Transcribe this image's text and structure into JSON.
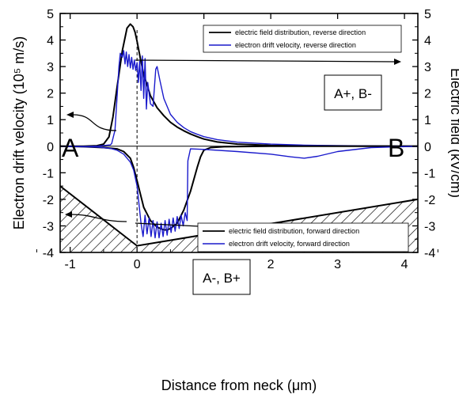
{
  "chart_data": {
    "type": "line",
    "xlabel": "Distance from neck (μm)",
    "ylabel_left": "Electron drift velocity (10⁵ m/s)",
    "ylabel_right": "Electric field  (kV/cm)",
    "xlim": [
      -1.15,
      4.2
    ],
    "ylim_left": [
      -4,
      5
    ],
    "ylim_right": [
      -4,
      5
    ],
    "x_ticks": [
      -1,
      0,
      1,
      2,
      3,
      4
    ],
    "y_ticks": [
      -4,
      -3,
      -2,
      -1,
      0,
      1,
      2,
      3,
      4,
      5
    ],
    "grid": false,
    "legends": [
      {
        "placement": "top-right",
        "entries": [
          {
            "label": "electric field distribution, reverse direction",
            "color": "#000000"
          },
          {
            "label": "electron drift velocity, reverse direction",
            "color": "#1a1acc"
          }
        ]
      },
      {
        "placement": "center-right",
        "entries": [
          {
            "label": "electric field distribution, forward direction",
            "color": "#000000"
          },
          {
            "label": "electron drift velocity, forward direction",
            "color": "#1a1acc"
          }
        ]
      }
    ],
    "annotations": {
      "terminal_left": "A",
      "terminal_right": "B",
      "box_reverse": "A+, B-",
      "box_forward": "A-, B+"
    },
    "series": [
      {
        "name": "electric field distribution, reverse direction",
        "color": "#000000",
        "x": [
          -1.15,
          -0.8,
          -0.6,
          -0.5,
          -0.42,
          -0.36,
          -0.3,
          -0.22,
          -0.15,
          -0.1,
          -0.06,
          -0.03,
          0.0,
          0.05,
          0.1,
          0.2,
          0.3,
          0.4,
          0.5,
          0.6,
          0.7,
          0.8,
          0.9,
          1.0,
          1.2,
          1.5,
          2.0,
          3.0,
          4.2
        ],
        "y": [
          0,
          0,
          0.02,
          0.08,
          0.35,
          1.1,
          2.2,
          3.6,
          4.45,
          4.6,
          4.5,
          4.3,
          3.95,
          3.3,
          2.7,
          1.9,
          1.45,
          1.15,
          0.9,
          0.72,
          0.58,
          0.46,
          0.36,
          0.27,
          0.16,
          0.08,
          0.03,
          0.01,
          0
        ]
      },
      {
        "name": "electron drift velocity, reverse direction",
        "color": "#1a1acc",
        "x": [
          -1.15,
          -0.6,
          -0.4,
          -0.38,
          -0.33,
          -0.3,
          -0.27,
          -0.25,
          -0.22,
          -0.2,
          -0.18,
          -0.16,
          -0.14,
          -0.12,
          -0.1,
          -0.08,
          -0.06,
          -0.04,
          -0.02,
          0.0,
          0.02,
          0.04,
          0.06,
          0.08,
          0.1,
          0.12,
          0.14,
          0.16,
          0.2,
          0.24,
          0.28,
          0.3,
          0.34,
          0.4,
          0.5,
          0.6,
          0.7,
          0.8,
          0.9,
          1.0,
          1.2,
          1.5,
          2.0,
          2.5,
          3.0,
          3.5,
          4.2
        ],
        "y": [
          0,
          0,
          0.05,
          0.1,
          0.6,
          1.8,
          3.0,
          3.5,
          3.35,
          3.6,
          3.1,
          3.55,
          3.0,
          3.45,
          2.95,
          3.35,
          2.9,
          3.25,
          2.85,
          3.15,
          2.4,
          3.2,
          2.1,
          3.4,
          1.8,
          3.3,
          1.4,
          2.4,
          1.6,
          1.5,
          2.9,
          3.0,
          2.5,
          1.8,
          1.2,
          0.9,
          0.7,
          0.55,
          0.45,
          0.36,
          0.25,
          0.15,
          0.08,
          0.04,
          0.02,
          0.01,
          0
        ]
      },
      {
        "name": "electric field distribution, forward direction",
        "color": "#000000",
        "x": [
          -1.15,
          -0.8,
          -0.5,
          -0.3,
          -0.2,
          -0.1,
          -0.05,
          0.0,
          0.05,
          0.1,
          0.2,
          0.3,
          0.4,
          0.45,
          0.5,
          0.6,
          0.7,
          0.8,
          0.9,
          0.95,
          1.0,
          1.1,
          1.3,
          1.6,
          2.0,
          3.0,
          4.2
        ],
        "y": [
          0,
          -0.02,
          -0.05,
          -0.1,
          -0.2,
          -0.45,
          -0.8,
          -1.3,
          -1.8,
          -2.3,
          -2.8,
          -3.05,
          -3.15,
          -3.15,
          -3.1,
          -2.9,
          -2.4,
          -1.7,
          -0.8,
          -0.4,
          -0.15,
          -0.05,
          -0.02,
          -0.01,
          0,
          0,
          0
        ]
      },
      {
        "name": "electron drift velocity, forward direction",
        "color": "#1a1acc",
        "x": [
          -1.15,
          -0.6,
          -0.4,
          -0.3,
          -0.2,
          -0.1,
          -0.05,
          0.0,
          0.03,
          0.06,
          0.09,
          0.12,
          0.15,
          0.18,
          0.21,
          0.24,
          0.27,
          0.3,
          0.33,
          0.36,
          0.39,
          0.42,
          0.45,
          0.48,
          0.51,
          0.54,
          0.57,
          0.6,
          0.63,
          0.66,
          0.69,
          0.72,
          0.75,
          0.76,
          0.8,
          1.0,
          1.5,
          2.0,
          2.3,
          2.5,
          2.7,
          3.0,
          3.5,
          4.2
        ],
        "y": [
          0,
          -0.03,
          -0.08,
          -0.15,
          -0.3,
          -0.6,
          -0.9,
          -1.5,
          -2.2,
          -2.9,
          -3.4,
          -2.6,
          -3.3,
          -2.7,
          -3.4,
          -2.8,
          -3.45,
          -2.85,
          -3.45,
          -2.9,
          -3.4,
          -2.8,
          -3.35,
          -2.75,
          -3.25,
          -2.7,
          -3.2,
          -2.65,
          -3.1,
          -2.6,
          -3.0,
          -2.5,
          -2.8,
          -0.55,
          -0.1,
          -0.12,
          -0.2,
          -0.3,
          -0.4,
          -0.45,
          -0.38,
          -0.2,
          -0.05,
          0
        ]
      }
    ],
    "hatched_region_boundary": {
      "x": [
        -1.15,
        0.0,
        4.2
      ],
      "y": [
        -1.5,
        -3.75,
        -2.0
      ]
    }
  }
}
